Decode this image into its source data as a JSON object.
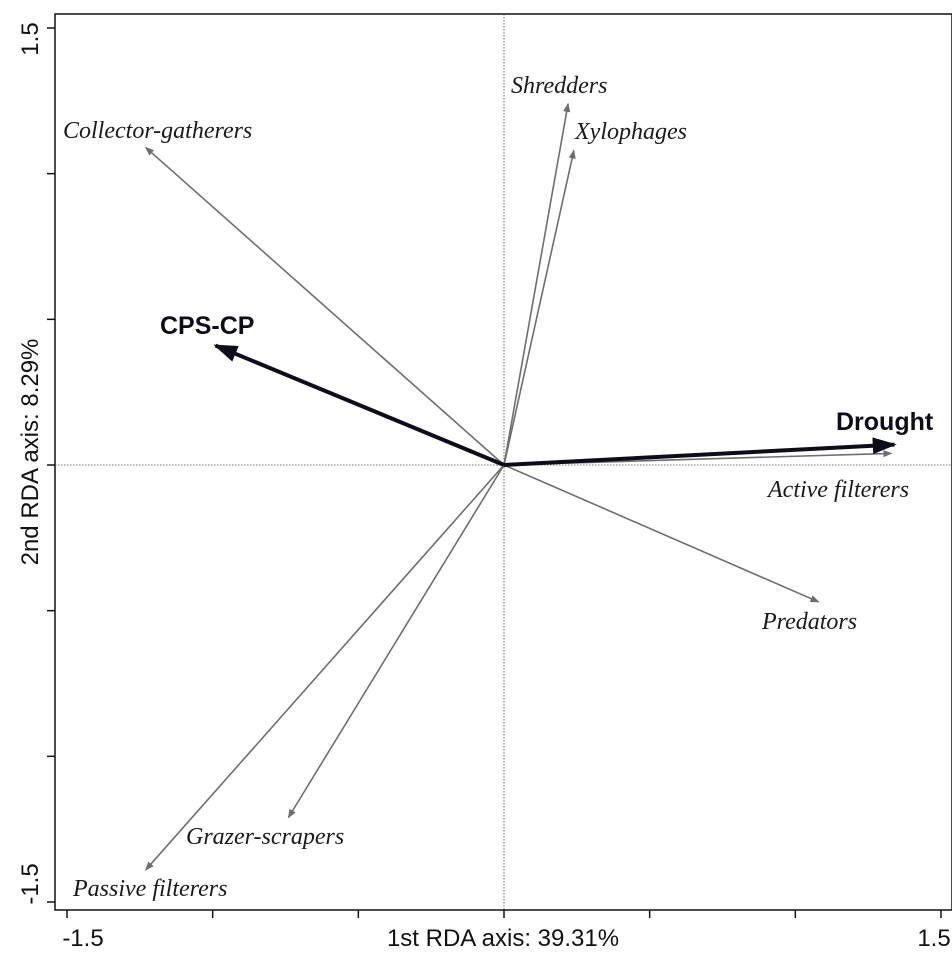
{
  "chart_data": {
    "type": "scatter",
    "subtype": "rda-biplot",
    "xlabel": "1st RDA axis: 39.31%",
    "ylabel": "2nd RDA axis: 8.29%",
    "xlim": [
      -1.5,
      1.5
    ],
    "ylim": [
      -1.5,
      1.5
    ],
    "x_tick_labels": [
      {
        "value": -1.5,
        "label": "-1.5"
      },
      {
        "value": 1.5,
        "label": "1.5"
      }
    ],
    "y_tick_labels": [
      {
        "value": 1.5,
        "label": "1.5"
      },
      {
        "value": -1.5,
        "label": "-1.5"
      }
    ],
    "x_ticks": [
      -1.5,
      -1.0,
      -0.5,
      0.0,
      0.5,
      1.0,
      1.5
    ],
    "y_ticks": [
      -1.5,
      -1.0,
      -0.5,
      0.0,
      0.5,
      1.0,
      1.5
    ],
    "origin_lines": true,
    "grid": false,
    "species_color": "#6e6e6e",
    "env_color": "#0d0d1a",
    "species_vectors": [
      {
        "label": "Collector-gatherers",
        "x": -1.23,
        "y": 1.09
      },
      {
        "label": "Shredders",
        "x": 0.22,
        "y": 1.24
      },
      {
        "label": "Xylophages",
        "x": 0.24,
        "y": 1.08
      },
      {
        "label": "Active filterers",
        "x": 1.33,
        "y": 0.04
      },
      {
        "label": "Predators",
        "x": 1.08,
        "y": -0.47
      },
      {
        "label": "Grazer-scrapers",
        "x": -0.74,
        "y": -1.21
      },
      {
        "label": "Passive filterers",
        "x": -1.23,
        "y": -1.39
      }
    ],
    "env_vectors": [
      {
        "label": "CPS-CP",
        "x": -0.99,
        "y": 0.41
      },
      {
        "label": "Drought",
        "x": 1.34,
        "y": 0.07
      }
    ]
  }
}
